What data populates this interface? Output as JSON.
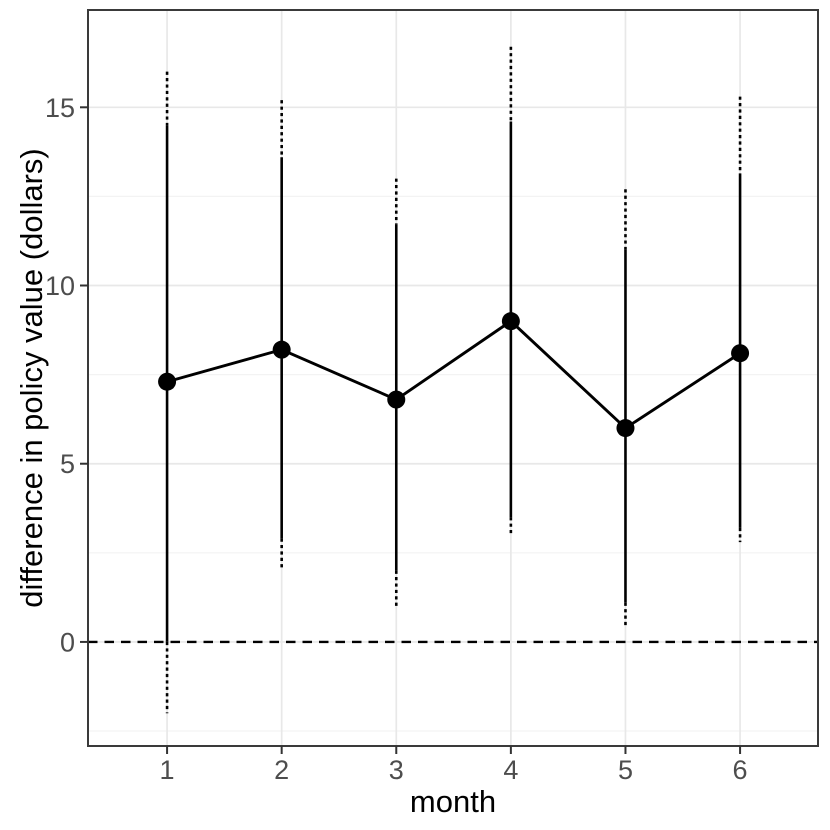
{
  "chart_data": {
    "type": "line",
    "title": "",
    "xlabel": "month",
    "ylabel": "difference in policy value (dollars)",
    "x": [
      1,
      2,
      3,
      4,
      5,
      6
    ],
    "series": [
      {
        "name": "point estimate",
        "values": [
          7.3,
          8.2,
          6.8,
          9.0,
          6.0,
          8.1
        ]
      },
      {
        "name": "inner interval (solid)",
        "low": [
          0.0,
          2.9,
          2.0,
          3.5,
          1.1,
          3.2
        ],
        "high": [
          14.5,
          13.6,
          11.7,
          14.6,
          11.0,
          13.1
        ]
      },
      {
        "name": "outer interval (dashed)",
        "low": [
          -2.0,
          2.0,
          1.0,
          3.0,
          0.4,
          2.8
        ],
        "high": [
          16.0,
          15.2,
          13.0,
          16.7,
          12.7,
          15.3
        ]
      }
    ],
    "reference_line_y": 0,
    "x_ticks": [
      1,
      2,
      3,
      4,
      5,
      6
    ],
    "y_ticks": [
      0,
      5,
      10,
      15
    ],
    "y_minor_gridlines": [
      -2.5,
      2.5,
      7.5,
      12.5
    ],
    "xlim": [
      0.31,
      6.68
    ],
    "ylim": [
      -2.92,
      17.73
    ],
    "grid": true,
    "legend_position": "none",
    "colors": {
      "data": "#000000",
      "grid_major": "#e8e8e8",
      "grid_minor": "#f3f3f3",
      "panel_border": "#3a3a3a",
      "tick_mark": "#333333",
      "tick_label": "#4d4d4d",
      "axis_title": "#000000",
      "background": "#ffffff"
    }
  }
}
